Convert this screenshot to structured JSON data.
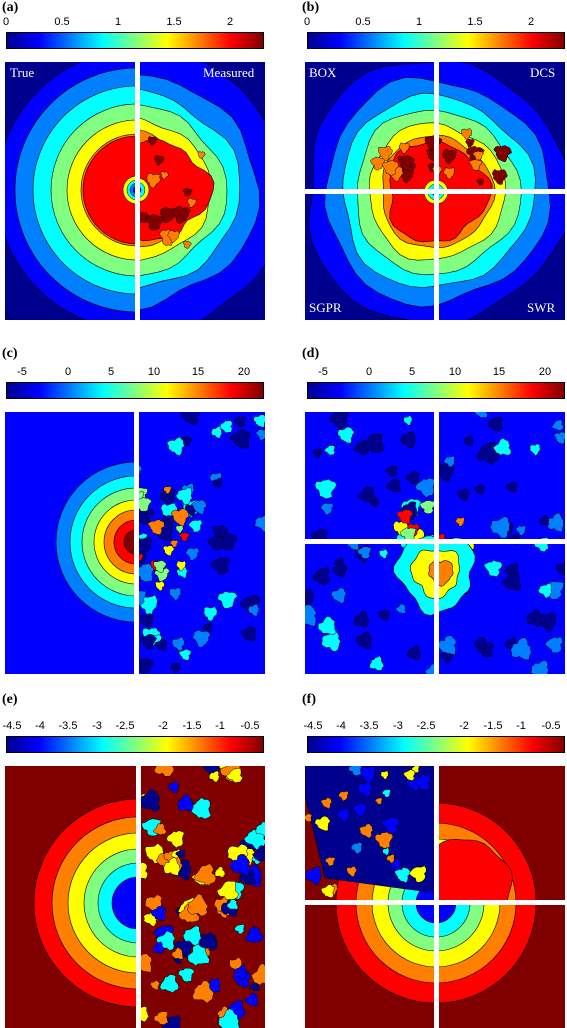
{
  "panels": [
    {
      "id": "a",
      "label": "(a)",
      "ticks": [
        "0",
        "0.5",
        "1",
        "1.5",
        "2"
      ],
      "corner_labels": {
        "top_left": "True",
        "top_right": "Measured"
      }
    },
    {
      "id": "b",
      "label": "(b)",
      "ticks": [
        "0",
        "0.5",
        "1",
        "1.5",
        "2"
      ],
      "corner_labels": {
        "top_left": "BOX",
        "top_right": "DCS",
        "bottom_left": "SGPR",
        "bottom_right": "SWR"
      }
    },
    {
      "id": "c",
      "label": "(c)",
      "ticks": [
        "-5",
        "0",
        "5",
        "10",
        "15",
        "20"
      ]
    },
    {
      "id": "d",
      "label": "(d)",
      "ticks": [
        "-5",
        "0",
        "5",
        "10",
        "15",
        "20"
      ]
    },
    {
      "id": "e",
      "label": "(e)",
      "ticks": [
        "-4.5",
        "-4",
        "-3.5",
        "-3",
        "-2.5",
        "-2",
        "-1.5",
        "-1",
        "-0.5"
      ]
    },
    {
      "id": "f",
      "label": "(f)",
      "ticks": [
        "-4.5",
        "-4",
        "-3.5",
        "-3",
        "-2.5",
        "-2",
        "-1.5",
        "-1",
        "-0.5"
      ]
    }
  ],
  "colors": {
    "colormap": [
      "#00008f",
      "#0000ff",
      "#0080ff",
      "#00ffff",
      "#80ff80",
      "#ffff00",
      "#ff8000",
      "#ff0000",
      "#800000"
    ],
    "divider": "#ffffff",
    "label_text": "#ffffff"
  }
}
